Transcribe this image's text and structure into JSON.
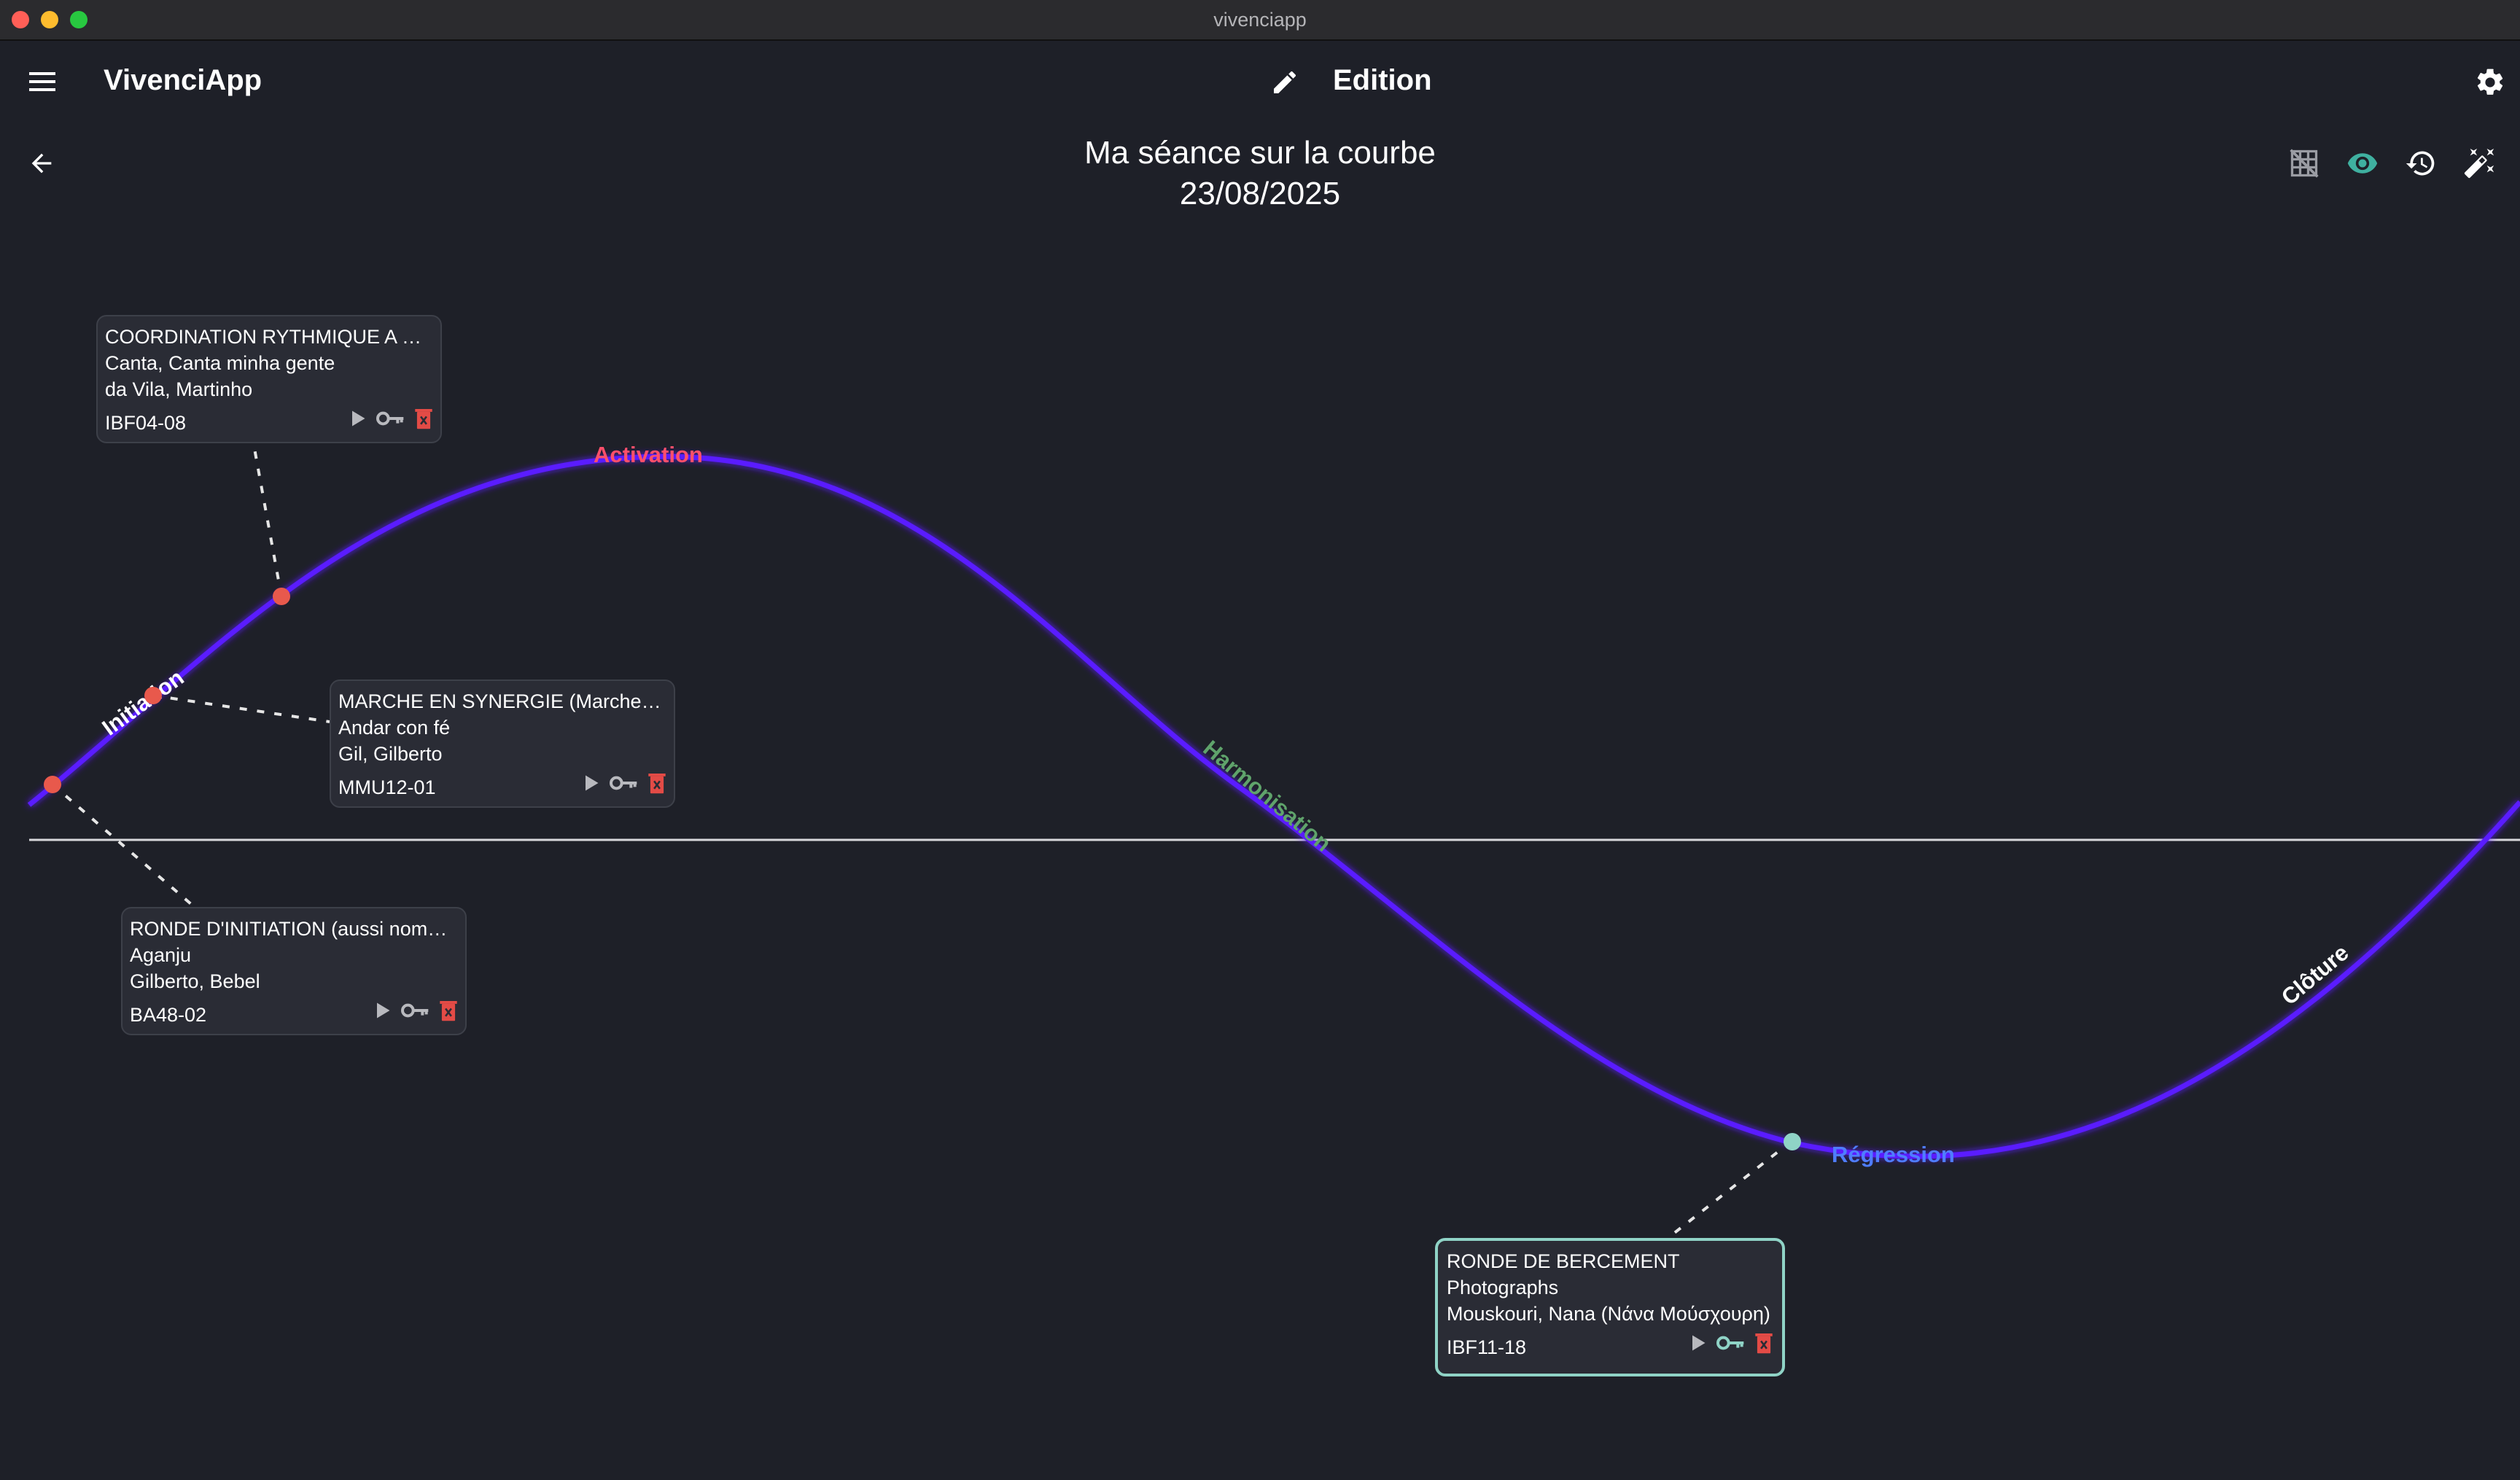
{
  "window": {
    "title": "vivenciapp"
  },
  "header": {
    "app_name": "VivenciApp",
    "mode_label": "Edition"
  },
  "session": {
    "title": "Ma séance sur la courbe",
    "date": "23/08/2025"
  },
  "toolbar": {
    "icons": [
      "grid-off-icon",
      "eye-icon",
      "history-icon",
      "magic-wand-icon"
    ],
    "accent_color": "#3fb0a0"
  },
  "curve": {
    "color": "#5a1bff",
    "phases": [
      {
        "label": "Initiation",
        "color": "#ffffff"
      },
      {
        "label": "Activation",
        "color": "#ff4f6a"
      },
      {
        "label": "Harmonisation",
        "color": "#5fa36b"
      },
      {
        "label": "Régression",
        "color": "#4f7dff"
      },
      {
        "label": "Clôture",
        "color": "#ffffff"
      }
    ]
  },
  "cards": [
    {
      "title": "COORDINATION RYTHMIQUE A DEU...",
      "song": "Canta, Canta minha gente",
      "artist": "da Vila, Martinho",
      "code": "IBF04-08",
      "marker_color": "#e8594c",
      "selected": false
    },
    {
      "title": "MARCHE EN SYNERGIE (Marche syne...",
      "song": "Andar con fé",
      "artist": "Gil, Gilberto",
      "code": "MMU12-01",
      "marker_color": "#e8594c",
      "selected": false
    },
    {
      "title": "RONDE D'INITIATION (aussi nommé...",
      "song": "Aganju",
      "artist": "Gilberto, Bebel",
      "code": "BA48-02",
      "marker_color": "#e8594c",
      "selected": false
    },
    {
      "title": "RONDE DE BERCEMENT",
      "song": "Photographs",
      "artist": "Mouskouri, Nana (Νάνα Μούσχουρη)",
      "code": "IBF11-18",
      "marker_color": "#8fd3c6",
      "selected": true
    }
  ]
}
